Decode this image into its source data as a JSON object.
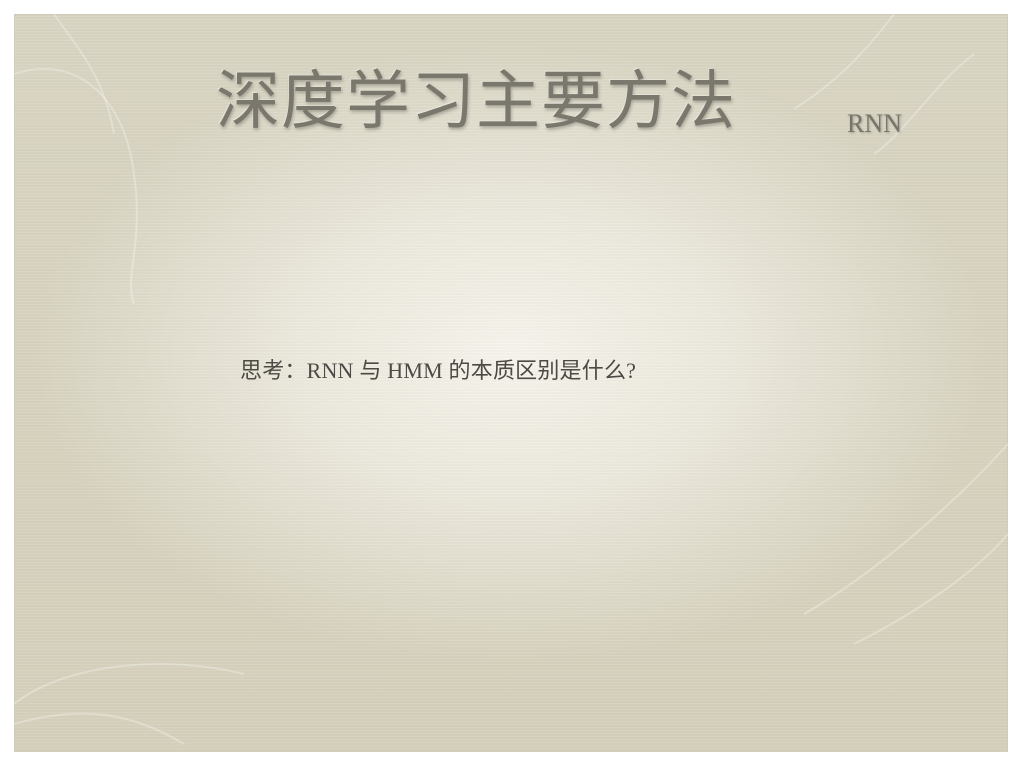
{
  "slide": {
    "title": "深度学习主要方法",
    "subtitle": "RNN",
    "question": "思考：RNN  与 HMM 的本质区别是什么?"
  },
  "colors": {
    "paper": "#d9d5c3",
    "title_text": "#7a776d",
    "body_text": "#4c4a44"
  }
}
